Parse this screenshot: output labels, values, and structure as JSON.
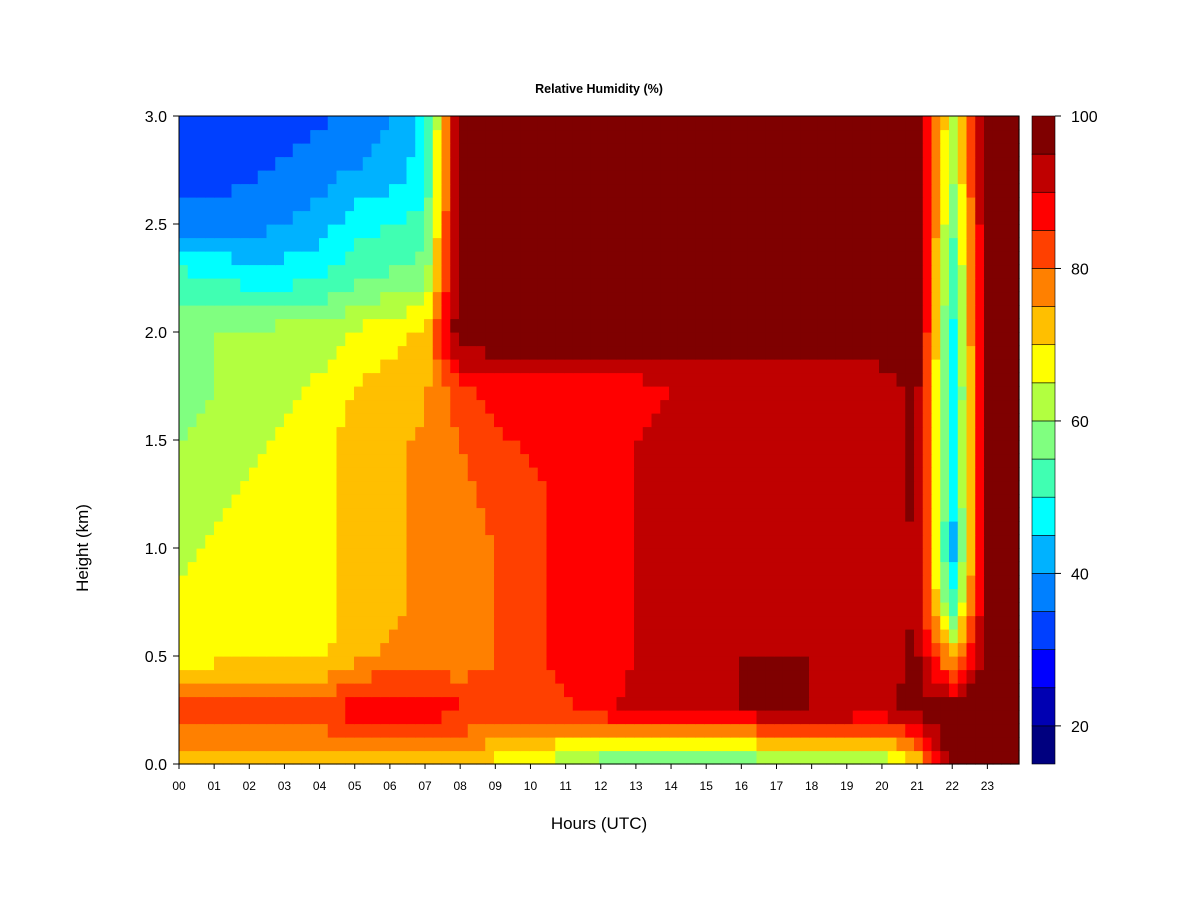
{
  "chart_data": {
    "type": "heatmap",
    "title": "Relative Humidity (%)",
    "xlabel": "Hours (UTC)",
    "ylabel": "Height (km)",
    "x_tick_labels": [
      "00",
      "01",
      "02",
      "03",
      "04",
      "05",
      "06",
      "07",
      "08",
      "09",
      "10",
      "11",
      "12",
      "13",
      "14",
      "15",
      "16",
      "17",
      "18",
      "19",
      "20",
      "21",
      "22",
      "23"
    ],
    "xlim": [
      0,
      23.9
    ],
    "y_tick_values": [
      0.0,
      0.5,
      1.0,
      1.5,
      2.0,
      2.5,
      3.0
    ],
    "y_tick_labels": [
      "0.0",
      "0.5",
      "1.0",
      "1.5",
      "2.0",
      "2.5",
      "3.0"
    ],
    "ylim": [
      0,
      3.0
    ],
    "colorbar": {
      "range": [
        15,
        100
      ],
      "tick_values": [
        20,
        40,
        60,
        80,
        100
      ],
      "tick_labels": [
        "20",
        "40",
        "60",
        "80",
        "100"
      ],
      "level_colors": [
        "#00007f",
        "#0000b2",
        "#0000ff",
        "#0040ff",
        "#0080ff",
        "#00b2ff",
        "#00ffff",
        "#40ffb2",
        "#80ff80",
        "#b2ff40",
        "#ffff00",
        "#ffbf00",
        "#ff8000",
        "#ff4000",
        "#ff0000",
        "#bf0000",
        "#7f0000"
      ]
    },
    "hours": [
      0,
      1,
      2,
      3,
      4,
      5,
      6,
      7,
      8,
      9,
      10,
      11,
      12,
      13,
      14,
      15,
      16,
      17,
      18,
      19,
      20,
      21,
      22,
      23
    ],
    "heights_km": [
      0.0,
      0.25,
      0.5,
      0.75,
      1.0,
      1.25,
      1.5,
      1.75,
      2.0,
      2.25,
      2.5,
      2.75,
      3.0
    ],
    "z_rh_percent_by_height": [
      [
        72,
        72,
        72,
        72,
        72,
        72,
        72,
        72,
        72,
        68,
        66,
        60,
        56,
        54,
        54,
        54,
        54,
        56,
        56,
        56,
        58,
        70,
        100,
        100
      ],
      [
        82,
        84,
        84,
        84,
        84,
        88,
        88,
        88,
        86,
        84,
        84,
        84,
        88,
        92,
        94,
        95,
        95,
        95,
        95,
        95,
        94,
        97,
        100,
        100
      ],
      [
        68,
        68,
        68,
        68,
        68,
        74,
        76,
        76,
        76,
        80,
        84,
        86,
        88,
        90,
        92,
        94,
        95,
        95,
        95,
        94,
        93,
        96,
        72,
        100
      ],
      [
        66,
        66,
        68,
        68,
        68,
        72,
        74,
        76,
        77,
        80,
        84,
        86,
        88,
        90,
        92,
        93,
        94,
        94,
        93,
        93,
        93,
        95,
        50,
        100
      ],
      [
        64,
        66,
        68,
        68,
        68,
        72,
        74,
        76,
        78,
        80,
        84,
        86,
        88,
        90,
        92,
        93,
        94,
        94,
        94,
        93,
        93,
        95,
        42,
        100
      ],
      [
        62,
        64,
        66,
        68,
        68,
        72,
        74,
        76,
        78,
        82,
        84,
        86,
        88,
        90,
        92,
        94,
        94,
        94,
        94,
        94,
        93,
        96,
        45,
        100
      ],
      [
        60,
        62,
        64,
        66,
        68,
        72,
        74,
        76,
        80,
        84,
        86,
        88,
        88,
        90,
        92,
        94,
        94,
        94,
        94,
        94,
        93,
        96,
        46,
        100
      ],
      [
        58,
        60,
        62,
        64,
        66,
        70,
        72,
        74,
        84,
        88,
        88,
        88,
        88,
        88,
        90,
        91,
        91,
        91,
        90,
        90,
        92,
        97,
        44,
        100
      ],
      [
        60,
        60,
        60,
        62,
        62,
        66,
        68,
        72,
        100,
        100,
        100,
        100,
        100,
        100,
        100,
        100,
        100,
        100,
        100,
        100,
        100,
        100,
        48,
        100
      ],
      [
        52,
        50,
        48,
        48,
        50,
        54,
        56,
        58,
        100,
        100,
        100,
        100,
        100,
        100,
        100,
        100,
        100,
        100,
        100,
        100,
        100,
        100,
        50,
        100
      ],
      [
        38,
        38,
        38,
        40,
        42,
        48,
        50,
        52,
        100,
        100,
        100,
        100,
        100,
        100,
        100,
        100,
        100,
        100,
        100,
        100,
        100,
        100,
        55,
        100
      ],
      [
        32,
        32,
        34,
        36,
        38,
        40,
        42,
        48,
        100,
        100,
        100,
        100,
        100,
        100,
        100,
        100,
        100,
        100,
        100,
        100,
        100,
        100,
        60,
        100
      ],
      [
        30,
        30,
        30,
        32,
        34,
        38,
        40,
        46,
        100,
        100,
        100,
        100,
        100,
        100,
        100,
        100,
        100,
        100,
        100,
        100,
        100,
        100,
        62,
        100
      ]
    ]
  }
}
